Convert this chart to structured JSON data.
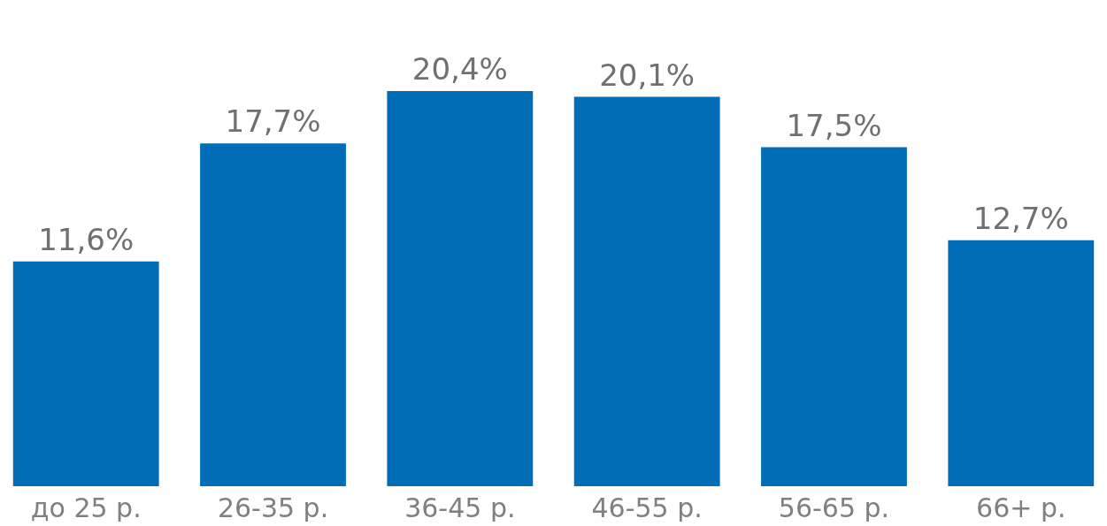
{
  "chart_data": {
    "type": "bar",
    "categories": [
      "до 25 р.",
      "26-35 р.",
      "36-45 р.",
      "46-55 р.",
      "56-65 р.",
      "66+ р."
    ],
    "values": [
      11.6,
      17.7,
      20.4,
      20.1,
      17.5,
      12.7
    ],
    "value_labels": [
      "11,6%",
      "17,7%",
      "20,4%",
      "20,1%",
      "17,5%",
      "12,7%"
    ],
    "color": "#006db6",
    "grid": false
  }
}
